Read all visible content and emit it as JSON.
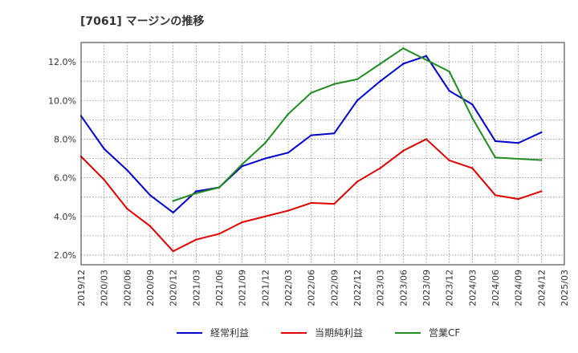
{
  "chart_data": {
    "type": "line",
    "title": "[7061]  マージンの推移",
    "x": [
      "2019/12",
      "2020/03",
      "2020/06",
      "2020/09",
      "2020/12",
      "2021/03",
      "2021/06",
      "2021/09",
      "2021/12",
      "2022/03",
      "2022/06",
      "2022/09",
      "2022/12",
      "2023/03",
      "2023/06",
      "2023/09",
      "2023/12",
      "2024/03",
      "2024/06",
      "2024/09",
      "2024/12",
      "2025/03"
    ],
    "ylim": [
      1.5,
      13.0
    ],
    "yticks": [
      2.0,
      4.0,
      6.0,
      8.0,
      10.0,
      12.0
    ],
    "ytick_labels": [
      "2.0%",
      "4.0%",
      "6.0%",
      "8.0%",
      "10.0%",
      "12.0%"
    ],
    "grid": true,
    "legend_position": "bottom",
    "series": [
      {
        "name": "経常利益",
        "color": "#0000cc",
        "values": [
          9.2,
          7.5,
          6.4,
          5.1,
          4.2,
          5.3,
          5.5,
          6.6,
          7.0,
          7.3,
          8.2,
          8.3,
          10.0,
          11.0,
          11.9,
          12.3,
          10.5,
          9.8,
          7.9,
          7.8,
          8.35,
          null
        ]
      },
      {
        "name": "当期純利益",
        "color": "#dd0000",
        "values": [
          7.1,
          5.9,
          4.4,
          3.5,
          2.2,
          2.8,
          3.1,
          3.7,
          4.0,
          4.3,
          4.7,
          4.65,
          5.8,
          6.5,
          7.4,
          8.0,
          6.9,
          6.5,
          5.1,
          4.9,
          5.3,
          null
        ]
      },
      {
        "name": "営業CF",
        "color": "#228b22",
        "values": [
          null,
          null,
          null,
          null,
          4.8,
          5.2,
          5.5,
          6.7,
          7.8,
          9.3,
          10.4,
          10.85,
          11.1,
          11.9,
          12.7,
          12.1,
          11.5,
          9.1,
          7.05,
          6.98,
          6.92,
          null
        ]
      }
    ]
  }
}
